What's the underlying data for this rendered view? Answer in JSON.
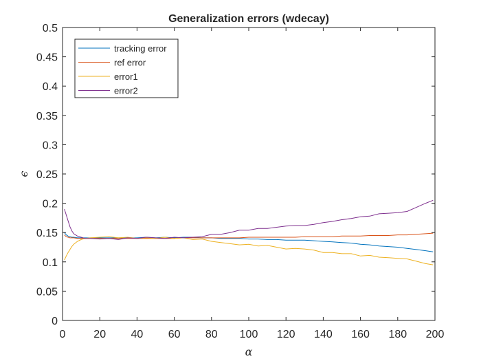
{
  "chart_data": {
    "type": "line",
    "title": "Generalization errors (wdecay)",
    "xlabel": "α",
    "ylabel": "ϵ",
    "xlim": [
      0,
      200
    ],
    "ylim": [
      0,
      0.5
    ],
    "xticks": [
      0,
      20,
      40,
      60,
      80,
      100,
      120,
      140,
      160,
      180,
      200
    ],
    "yticks": [
      0,
      0.05,
      0.1,
      0.15,
      0.2,
      0.25,
      0.3,
      0.35,
      0.4,
      0.45,
      0.5
    ],
    "x_tick_labels": [
      "0",
      "20",
      "40",
      "60",
      "80",
      "100",
      "120",
      "140",
      "160",
      "180",
      "200"
    ],
    "y_tick_labels": [
      "0",
      "0.05",
      "0.1",
      "0.15",
      "0.2",
      "0.25",
      "0.3",
      "0.35",
      "0.4",
      "0.45",
      "0.5"
    ],
    "grid": false,
    "legend_position": "top-left",
    "series": [
      {
        "name": "tracking error",
        "color": "#0072BD",
        "x": [
          1,
          2,
          3,
          4,
          5,
          6,
          8,
          10,
          12,
          15,
          20,
          25,
          30,
          35,
          40,
          45,
          50,
          55,
          60,
          65,
          70,
          75,
          80,
          85,
          90,
          95,
          100,
          105,
          110,
          115,
          120,
          125,
          130,
          135,
          140,
          145,
          150,
          155,
          160,
          165,
          170,
          175,
          180,
          185,
          190,
          195,
          199
        ],
        "y": [
          0.15,
          0.146,
          0.144,
          0.143,
          0.142,
          0.142,
          0.141,
          0.141,
          0.141,
          0.141,
          0.141,
          0.141,
          0.141,
          0.141,
          0.141,
          0.142,
          0.141,
          0.142,
          0.141,
          0.142,
          0.142,
          0.141,
          0.141,
          0.14,
          0.14,
          0.14,
          0.139,
          0.139,
          0.138,
          0.138,
          0.137,
          0.137,
          0.137,
          0.136,
          0.135,
          0.134,
          0.133,
          0.132,
          0.13,
          0.129,
          0.127,
          0.126,
          0.125,
          0.123,
          0.121,
          0.119,
          0.117
        ]
      },
      {
        "name": "ref error",
        "color": "#D95319",
        "x": [
          1,
          2,
          3,
          4,
          5,
          6,
          8,
          10,
          12,
          15,
          20,
          25,
          30,
          35,
          40,
          45,
          50,
          55,
          60,
          65,
          70,
          75,
          80,
          85,
          90,
          95,
          100,
          105,
          110,
          115,
          120,
          125,
          130,
          135,
          140,
          145,
          150,
          155,
          160,
          165,
          170,
          175,
          180,
          185,
          190,
          195,
          199
        ],
        "y": [
          0.146,
          0.143,
          0.142,
          0.141,
          0.141,
          0.141,
          0.14,
          0.14,
          0.14,
          0.14,
          0.14,
          0.14,
          0.14,
          0.14,
          0.14,
          0.14,
          0.14,
          0.14,
          0.14,
          0.141,
          0.141,
          0.141,
          0.141,
          0.141,
          0.141,
          0.141,
          0.142,
          0.142,
          0.142,
          0.142,
          0.142,
          0.142,
          0.143,
          0.143,
          0.143,
          0.143,
          0.144,
          0.144,
          0.144,
          0.145,
          0.145,
          0.145,
          0.146,
          0.146,
          0.147,
          0.148,
          0.149
        ]
      },
      {
        "name": "error1",
        "color": "#EDB120",
        "x": [
          1,
          2,
          3,
          4,
          5,
          6,
          8,
          10,
          12,
          15,
          20,
          25,
          30,
          35,
          40,
          45,
          50,
          55,
          60,
          65,
          70,
          75,
          80,
          85,
          90,
          95,
          100,
          105,
          110,
          115,
          120,
          125,
          130,
          135,
          140,
          145,
          150,
          155,
          160,
          165,
          170,
          175,
          180,
          185,
          190,
          195,
          199
        ],
        "y": [
          0.103,
          0.11,
          0.116,
          0.121,
          0.126,
          0.13,
          0.135,
          0.138,
          0.14,
          0.141,
          0.142,
          0.143,
          0.141,
          0.142,
          0.14,
          0.141,
          0.14,
          0.142,
          0.14,
          0.141,
          0.138,
          0.139,
          0.135,
          0.133,
          0.131,
          0.129,
          0.13,
          0.127,
          0.128,
          0.125,
          0.122,
          0.123,
          0.122,
          0.12,
          0.116,
          0.116,
          0.114,
          0.114,
          0.11,
          0.111,
          0.108,
          0.107,
          0.106,
          0.105,
          0.101,
          0.097,
          0.095
        ]
      },
      {
        "name": "error2",
        "color": "#7E2F8E",
        "x": [
          1,
          2,
          3,
          4,
          5,
          6,
          8,
          10,
          12,
          15,
          20,
          25,
          30,
          35,
          40,
          45,
          50,
          55,
          60,
          65,
          70,
          75,
          80,
          85,
          90,
          95,
          100,
          105,
          110,
          115,
          120,
          125,
          130,
          135,
          140,
          145,
          150,
          155,
          160,
          165,
          170,
          175,
          180,
          185,
          190,
          195,
          199
        ],
        "y": [
          0.19,
          0.18,
          0.17,
          0.16,
          0.153,
          0.148,
          0.144,
          0.142,
          0.14,
          0.14,
          0.139,
          0.14,
          0.138,
          0.141,
          0.14,
          0.142,
          0.141,
          0.14,
          0.142,
          0.141,
          0.142,
          0.143,
          0.147,
          0.147,
          0.15,
          0.154,
          0.154,
          0.157,
          0.157,
          0.159,
          0.161,
          0.162,
          0.162,
          0.164,
          0.167,
          0.169,
          0.172,
          0.174,
          0.177,
          0.178,
          0.182,
          0.183,
          0.184,
          0.186,
          0.193,
          0.2,
          0.205
        ]
      }
    ]
  }
}
